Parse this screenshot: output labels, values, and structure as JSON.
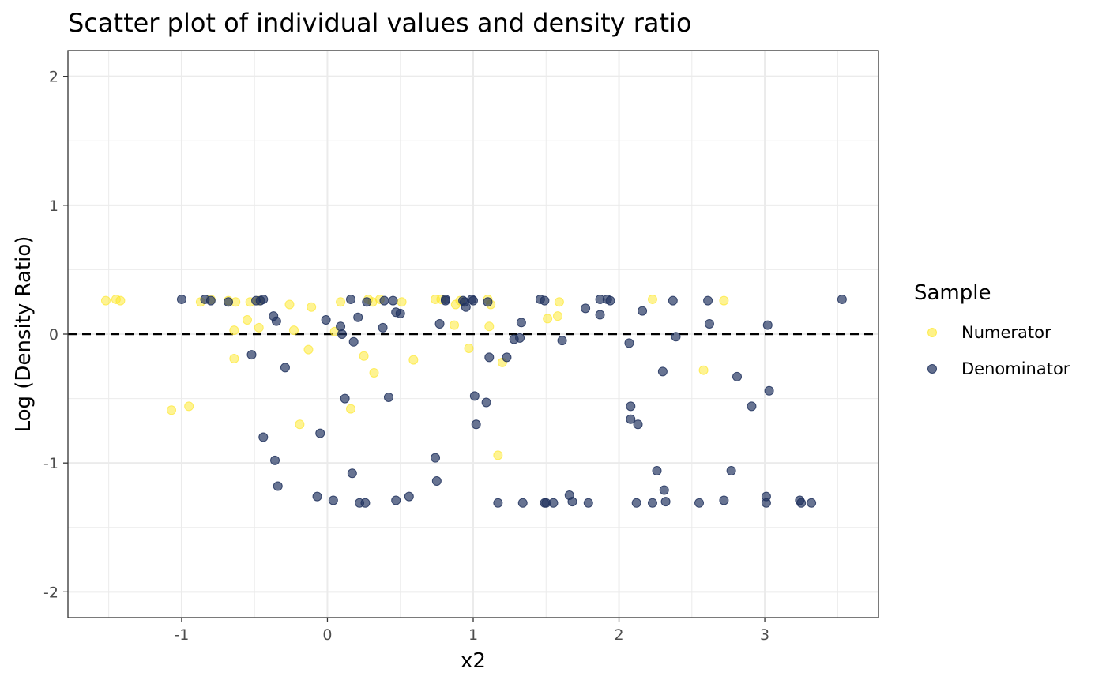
{
  "chart_data": {
    "type": "scatter",
    "title": "Scatter plot of individual values and density ratio",
    "xlabel": "x2",
    "ylabel": "Log (Density Ratio)",
    "xlim": [
      -1.78,
      3.78
    ],
    "ylim": [
      -2.2,
      2.2
    ],
    "x_ticks": [
      -1,
      0,
      1,
      2,
      3
    ],
    "y_ticks": [
      -2,
      -1,
      0,
      1,
      2
    ],
    "x_tick_labels": [
      "-1",
      "0",
      "1",
      "2",
      "3"
    ],
    "y_tick_labels": [
      "-2",
      "-1",
      "0",
      "1",
      "2"
    ],
    "reference_line": {
      "y": 0,
      "style": "dashed",
      "color": "#000000"
    },
    "grid": true,
    "legend": {
      "title": "Sample",
      "placement": "right"
    },
    "series": [
      {
        "name": "Numerator",
        "color": "#FDE725",
        "points": [
          [
            -1.52,
            0.26
          ],
          [
            -1.45,
            0.27
          ],
          [
            -1.42,
            0.26
          ],
          [
            -1.07,
            -0.59
          ],
          [
            -0.95,
            -0.56
          ],
          [
            -0.87,
            0.25
          ],
          [
            -0.8,
            0.27
          ],
          [
            -0.68,
            0.26
          ],
          [
            -0.63,
            0.25
          ],
          [
            -0.64,
            0.03
          ],
          [
            -0.64,
            -0.19
          ],
          [
            -0.55,
            0.11
          ],
          [
            -0.53,
            0.25
          ],
          [
            -0.47,
            0.05
          ],
          [
            -0.47,
            0.26
          ],
          [
            -0.26,
            0.23
          ],
          [
            -0.23,
            0.03
          ],
          [
            -0.19,
            -0.7
          ],
          [
            -0.13,
            -0.12
          ],
          [
            -0.11,
            0.21
          ],
          [
            0.05,
            0.02
          ],
          [
            0.09,
            0.25
          ],
          [
            0.16,
            -0.58
          ],
          [
            0.25,
            -0.17
          ],
          [
            0.28,
            0.27
          ],
          [
            0.31,
            0.25
          ],
          [
            0.32,
            -0.3
          ],
          [
            0.36,
            0.27
          ],
          [
            0.51,
            0.25
          ],
          [
            0.59,
            -0.2
          ],
          [
            0.74,
            0.27
          ],
          [
            0.78,
            0.27
          ],
          [
            0.87,
            0.07
          ],
          [
            0.88,
            0.23
          ],
          [
            0.91,
            0.26
          ],
          [
            0.97,
            -0.11
          ],
          [
            1.1,
            0.27
          ],
          [
            1.11,
            0.06
          ],
          [
            1.12,
            0.23
          ],
          [
            1.17,
            -0.94
          ],
          [
            1.2,
            -0.22
          ],
          [
            1.51,
            0.12
          ],
          [
            1.58,
            0.14
          ],
          [
            1.59,
            0.25
          ],
          [
            2.23,
            0.27
          ],
          [
            2.58,
            -0.28
          ],
          [
            2.72,
            0.26
          ]
        ]
      },
      {
        "name": "Denominator",
        "color": "#21325E",
        "points": [
          [
            -1.0,
            0.27
          ],
          [
            -0.84,
            0.27
          ],
          [
            -0.8,
            0.26
          ],
          [
            -0.68,
            0.25
          ],
          [
            -0.52,
            -0.16
          ],
          [
            -0.49,
            0.26
          ],
          [
            -0.46,
            0.26
          ],
          [
            -0.44,
            0.27
          ],
          [
            -0.44,
            -0.8
          ],
          [
            -0.37,
            0.14
          ],
          [
            -0.36,
            -0.98
          ],
          [
            -0.35,
            0.1
          ],
          [
            -0.34,
            -1.18
          ],
          [
            -0.29,
            -0.26
          ],
          [
            -0.07,
            -1.26
          ],
          [
            -0.05,
            -0.77
          ],
          [
            -0.01,
            0.11
          ],
          [
            0.04,
            -1.29
          ],
          [
            0.09,
            0.06
          ],
          [
            0.1,
            0.0
          ],
          [
            0.12,
            -0.5
          ],
          [
            0.16,
            0.27
          ],
          [
            0.18,
            -0.06
          ],
          [
            0.17,
            -1.08
          ],
          [
            0.21,
            0.13
          ],
          [
            0.22,
            -1.31
          ],
          [
            0.26,
            -1.31
          ],
          [
            0.27,
            0.25
          ],
          [
            0.38,
            0.05
          ],
          [
            0.39,
            0.26
          ],
          [
            0.42,
            -0.49
          ],
          [
            0.45,
            0.26
          ],
          [
            0.47,
            0.17
          ],
          [
            0.47,
            -1.29
          ],
          [
            0.5,
            0.16
          ],
          [
            0.56,
            -1.26
          ],
          [
            0.74,
            -0.96
          ],
          [
            0.75,
            -1.14
          ],
          [
            0.77,
            0.08
          ],
          [
            0.81,
            0.26
          ],
          [
            0.81,
            0.27
          ],
          [
            0.93,
            0.26
          ],
          [
            0.94,
            0.25
          ],
          [
            0.95,
            0.21
          ],
          [
            0.99,
            0.27
          ],
          [
            1.0,
            0.26
          ],
          [
            1.01,
            -0.48
          ],
          [
            1.02,
            -0.7
          ],
          [
            1.09,
            -0.53
          ],
          [
            1.1,
            0.25
          ],
          [
            1.11,
            -0.18
          ],
          [
            1.17,
            -1.31
          ],
          [
            1.23,
            -0.18
          ],
          [
            1.28,
            -0.04
          ],
          [
            1.32,
            -0.03
          ],
          [
            1.33,
            0.09
          ],
          [
            1.34,
            -1.31
          ],
          [
            1.46,
            0.27
          ],
          [
            1.49,
            0.26
          ],
          [
            1.49,
            -1.31
          ],
          [
            1.5,
            -1.31
          ],
          [
            1.55,
            -1.31
          ],
          [
            1.61,
            -0.05
          ],
          [
            1.66,
            -1.25
          ],
          [
            1.68,
            -1.3
          ],
          [
            1.77,
            0.2
          ],
          [
            1.79,
            -1.31
          ],
          [
            1.87,
            0.27
          ],
          [
            1.87,
            0.15
          ],
          [
            1.92,
            0.27
          ],
          [
            1.94,
            0.26
          ],
          [
            2.07,
            -0.07
          ],
          [
            2.08,
            -0.56
          ],
          [
            2.08,
            -0.66
          ],
          [
            2.12,
            -1.31
          ],
          [
            2.13,
            -0.7
          ],
          [
            2.16,
            0.18
          ],
          [
            2.23,
            -1.31
          ],
          [
            2.26,
            -1.06
          ],
          [
            2.3,
            -0.29
          ],
          [
            2.31,
            -1.21
          ],
          [
            2.32,
            -1.3
          ],
          [
            2.37,
            0.26
          ],
          [
            2.39,
            -0.02
          ],
          [
            2.55,
            -1.31
          ],
          [
            2.61,
            0.26
          ],
          [
            2.62,
            0.08
          ],
          [
            2.72,
            -1.29
          ],
          [
            2.77,
            -1.06
          ],
          [
            2.81,
            -0.33
          ],
          [
            2.91,
            -0.56
          ],
          [
            3.01,
            -1.26
          ],
          [
            3.01,
            -1.31
          ],
          [
            3.02,
            0.07
          ],
          [
            3.03,
            -0.44
          ],
          [
            3.24,
            -1.29
          ],
          [
            3.25,
            -1.31
          ],
          [
            3.32,
            -1.31
          ],
          [
            3.53,
            0.27
          ]
        ]
      }
    ]
  }
}
